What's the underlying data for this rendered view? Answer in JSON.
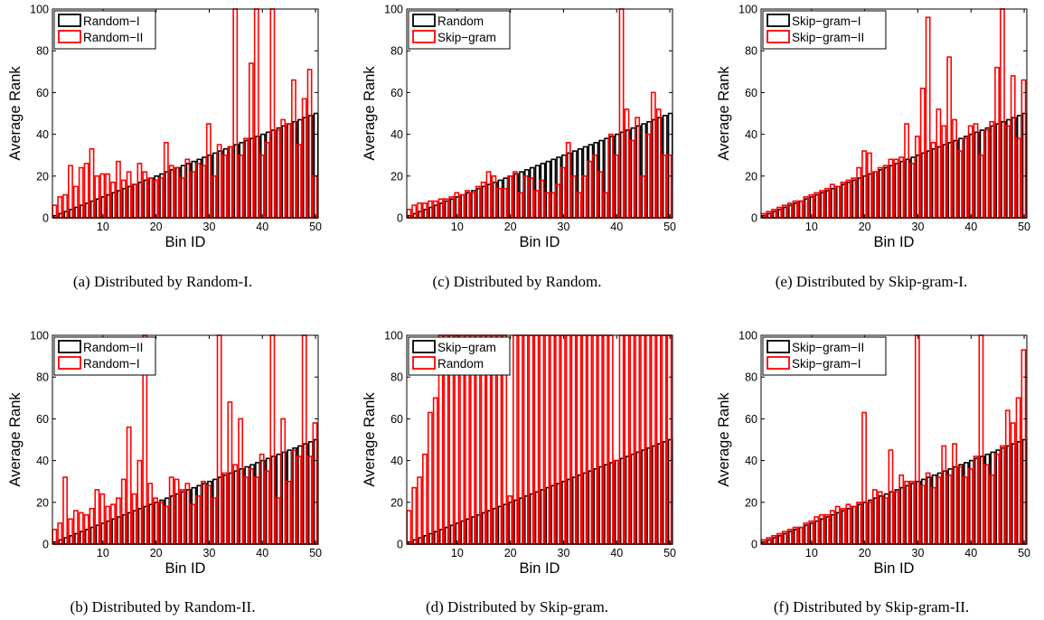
{
  "figure": {
    "colors": {
      "ref": "#000000",
      "cmp": "#ff0000"
    },
    "panels": [
      {
        "caption": "(a)  Distributed by Random-I.",
        "chart_data": {
          "type": "bar",
          "xlabel": "Bin ID",
          "ylabel": "Average Rank",
          "xlim": [
            1,
            50
          ],
          "ylim": [
            0,
            100
          ],
          "xticks": [
            "10",
            "20",
            "30",
            "40",
            "50"
          ],
          "yticks": [
            "0",
            "20",
            "40",
            "60",
            "80",
            "100"
          ],
          "legend_position": "top-left",
          "series": [
            {
              "name": "Random−I",
              "color": "#000000",
              "values": [
                1,
                2,
                3,
                4,
                5,
                6,
                7,
                8,
                9,
                10,
                11,
                12,
                13,
                14,
                15,
                16,
                17,
                18,
                19,
                20,
                21,
                22,
                23,
                24,
                25,
                26,
                27,
                28,
                29,
                30,
                31,
                32,
                33,
                34,
                35,
                36,
                37,
                38,
                39,
                40,
                41,
                42,
                43,
                44,
                45,
                46,
                47,
                48,
                49,
                50
              ]
            },
            {
              "name": "Random−II",
              "color": "#ff0000",
              "values": [
                6,
                10,
                11,
                25,
                15,
                24,
                26,
                33,
                20,
                21,
                21,
                17,
                27,
                18,
                22,
                16,
                26,
                22,
                19,
                18,
                19,
                36,
                25,
                24,
                19,
                28,
                22,
                26,
                25,
                45,
                20,
                35,
                30,
                34,
                100,
                30,
                38,
                74,
                100,
                30,
                36,
                100,
                42,
                47,
                45,
                66,
                35,
                57,
                71,
                20
              ]
            }
          ]
        }
      },
      {
        "caption": "(b)  Distributed by Random-II.",
        "chart_data": {
          "type": "bar",
          "xlabel": "Bin ID",
          "ylabel": "Average Rank",
          "xlim": [
            1,
            50
          ],
          "ylim": [
            0,
            100
          ],
          "xticks": [
            "10",
            "20",
            "30",
            "40",
            "50"
          ],
          "yticks": [
            "0",
            "20",
            "40",
            "60",
            "80",
            "100"
          ],
          "legend_position": "top-left",
          "series": [
            {
              "name": "Random−II",
              "color": "#000000",
              "values": [
                1,
                2,
                3,
                4,
                5,
                6,
                7,
                8,
                9,
                10,
                11,
                12,
                13,
                14,
                15,
                16,
                17,
                18,
                19,
                20,
                21,
                22,
                23,
                24,
                25,
                26,
                27,
                28,
                29,
                30,
                31,
                32,
                33,
                34,
                35,
                36,
                37,
                38,
                39,
                40,
                41,
                42,
                43,
                44,
                45,
                46,
                47,
                48,
                49,
                50
              ]
            },
            {
              "name": "Random−I",
              "color": "#ff0000",
              "values": [
                7,
                10,
                32,
                12,
                16,
                15,
                14,
                17,
                26,
                24,
                18,
                19,
                22,
                31,
                56,
                24,
                40,
                100,
                29,
                22,
                20,
                18,
                32,
                31,
                26,
                29,
                19,
                23,
                30,
                28,
                22,
                100,
                34,
                68,
                38,
                60,
                32,
                36,
                32,
                43,
                35,
                100,
                22,
                60,
                30,
                45,
                42,
                100,
                42,
                58
              ]
            }
          ]
        }
      },
      {
        "caption": "(c)  Distributed by Random.",
        "chart_data": {
          "type": "bar",
          "xlabel": "Bin ID",
          "ylabel": "Average Rank",
          "xlim": [
            1,
            50
          ],
          "ylim": [
            0,
            100
          ],
          "xticks": [
            "10",
            "20",
            "30",
            "40",
            "50"
          ],
          "yticks": [
            "0",
            "20",
            "40",
            "60",
            "80",
            "100"
          ],
          "legend_position": "top-left",
          "series": [
            {
              "name": "Random",
              "color": "#000000",
              "values": [
                1,
                2,
                3,
                4,
                5,
                6,
                7,
                8,
                9,
                10,
                11,
                12,
                13,
                14,
                15,
                16,
                17,
                18,
                19,
                20,
                21,
                22,
                23,
                24,
                25,
                26,
                27,
                28,
                29,
                30,
                31,
                32,
                33,
                34,
                35,
                36,
                37,
                38,
                39,
                40,
                41,
                42,
                43,
                44,
                45,
                46,
                47,
                48,
                49,
                50
              ]
            },
            {
              "name": "Skip−gram",
              "color": "#ff0000",
              "values": [
                4,
                6,
                7,
                7,
                8,
                8,
                9,
                9,
                10,
                12,
                11,
                13,
                12,
                15,
                17,
                22,
                20,
                14,
                14,
                20,
                22,
                12,
                20,
                19,
                13,
                18,
                12,
                12,
                16,
                24,
                36,
                20,
                12,
                20,
                27,
                30,
                22,
                12,
                40,
                30,
                100,
                52,
                37,
                48,
                20,
                40,
                60,
                52,
                30,
                30
              ]
            }
          ]
        }
      },
      {
        "caption": "(d)  Distributed by Skip-gram.",
        "chart_data": {
          "type": "bar",
          "xlabel": "Bin ID",
          "ylabel": "Average Rank",
          "xlim": [
            1,
            50
          ],
          "ylim": [
            0,
            100
          ],
          "xticks": [
            "10",
            "20",
            "30",
            "40",
            "50"
          ],
          "yticks": [
            "0",
            "20",
            "40",
            "60",
            "80",
            "100"
          ],
          "legend_position": "top-left",
          "series": [
            {
              "name": "Skip−gram",
              "color": "#000000",
              "values": [
                1,
                2,
                3,
                4,
                5,
                6,
                7,
                8,
                9,
                10,
                11,
                12,
                13,
                14,
                15,
                16,
                17,
                18,
                19,
                20,
                21,
                22,
                23,
                24,
                25,
                26,
                27,
                28,
                29,
                30,
                31,
                32,
                33,
                34,
                35,
                36,
                37,
                38,
                39,
                40,
                41,
                42,
                43,
                44,
                45,
                46,
                47,
                48,
                49,
                50
              ]
            },
            {
              "name": "Random",
              "color": "#ff0000",
              "values": [
                16,
                27,
                32,
                43,
                63,
                70,
                100,
                100,
                100,
                100,
                100,
                100,
                100,
                100,
                100,
                100,
                100,
                100,
                100,
                23,
                100,
                100,
                100,
                100,
                100,
                100,
                100,
                100,
                100,
                100,
                100,
                100,
                100,
                100,
                100,
                100,
                100,
                100,
                100,
                40,
                100,
                100,
                100,
                100,
                100,
                100,
                100,
                100,
                100,
                100
              ]
            }
          ]
        }
      },
      {
        "caption": "(e)  Distributed by Skip-gram-I.",
        "chart_data": {
          "type": "bar",
          "xlabel": "Bin ID",
          "ylabel": "Average Rank",
          "xlim": [
            1,
            50
          ],
          "ylim": [
            0,
            100
          ],
          "xticks": [
            "10",
            "20",
            "30",
            "40",
            "50"
          ],
          "yticks": [
            "0",
            "20",
            "40",
            "60",
            "80",
            "100"
          ],
          "legend_position": "top-left",
          "series": [
            {
              "name": "Skip−gram−I",
              "color": "#000000",
              "values": [
                1,
                2,
                3,
                4,
                5,
                6,
                7,
                8,
                9,
                10,
                11,
                12,
                13,
                14,
                15,
                16,
                17,
                18,
                19,
                20,
                21,
                22,
                23,
                24,
                25,
                26,
                27,
                28,
                29,
                30,
                31,
                32,
                33,
                34,
                35,
                36,
                37,
                38,
                39,
                40,
                41,
                42,
                43,
                44,
                45,
                46,
                47,
                48,
                49,
                50
              ]
            },
            {
              "name": "Skip−gram−II",
              "color": "#ff0000",
              "values": [
                2,
                3,
                4,
                5,
                6,
                7,
                8,
                8,
                10,
                11,
                12,
                13,
                14,
                16,
                15,
                17,
                18,
                19,
                24,
                32,
                31,
                22,
                24,
                25,
                28,
                28,
                29,
                45,
                26,
                39,
                62,
                96,
                36,
                52,
                44,
                77,
                47,
                32,
                38,
                44,
                45,
                30,
                42,
                46,
                72,
                100,
                44,
                68,
                38,
                66
              ]
            }
          ]
        }
      },
      {
        "caption": "(f)  Distributed by Skip-gram-II.",
        "chart_data": {
          "type": "bar",
          "xlabel": "Bin ID",
          "ylabel": "Average Rank",
          "xlim": [
            1,
            50
          ],
          "ylim": [
            0,
            100
          ],
          "xticks": [
            "10",
            "20",
            "30",
            "40",
            "50"
          ],
          "yticks": [
            "0",
            "20",
            "40",
            "60",
            "80",
            "100"
          ],
          "legend_position": "top-left",
          "series": [
            {
              "name": "Skip−gram−II",
              "color": "#000000",
              "values": [
                1,
                2,
                3,
                4,
                5,
                6,
                7,
                8,
                9,
                10,
                11,
                12,
                13,
                14,
                15,
                16,
                17,
                18,
                19,
                20,
                21,
                22,
                23,
                24,
                25,
                26,
                27,
                28,
                29,
                30,
                31,
                32,
                33,
                34,
                35,
                36,
                37,
                38,
                39,
                40,
                41,
                42,
                43,
                44,
                45,
                46,
                47,
                48,
                49,
                50
              ]
            },
            {
              "name": "Skip−gram−I",
              "color": "#ff0000",
              "values": [
                2,
                3,
                4,
                5,
                6,
                7,
                8,
                8,
                10,
                11,
                13,
                14,
                14,
                16,
                18,
                17,
                19,
                18,
                20,
                63,
                20,
                26,
                25,
                22,
                45,
                25,
                33,
                30,
                30,
                100,
                28,
                34,
                27,
                32,
                47,
                33,
                48,
                37,
                32,
                36,
                42,
                100,
                38,
                33,
                43,
                47,
                64,
                58,
                70,
                93
              ]
            }
          ]
        }
      }
    ]
  }
}
